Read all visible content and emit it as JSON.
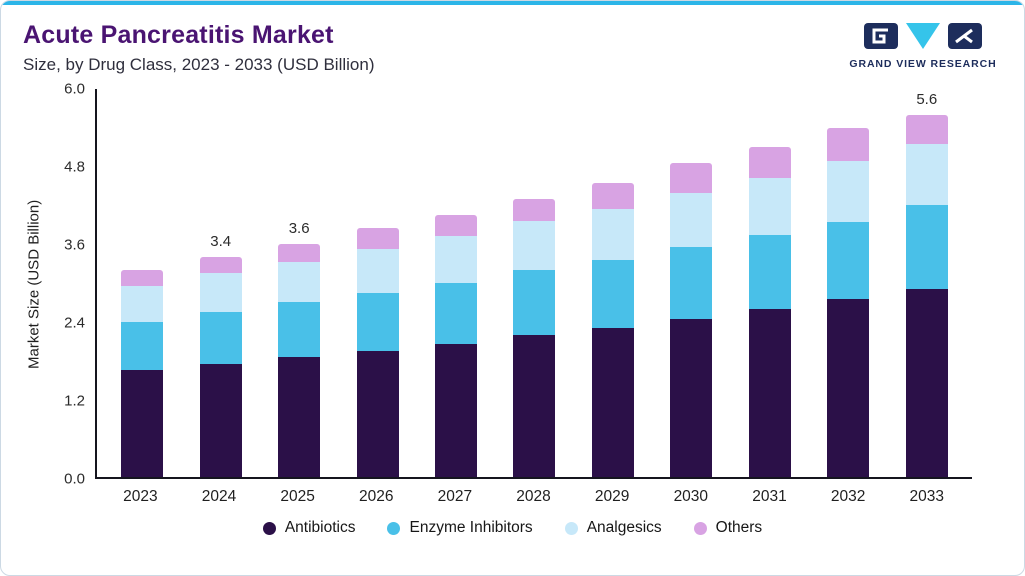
{
  "header": {
    "title": "Acute Pancreatitis Market",
    "subtitle": "Size, by Drug Class, 2023 - 2033 (USD Billion)"
  },
  "logo": {
    "text": "GRAND VIEW RESEARCH"
  },
  "colors": {
    "accent_top_line": "#2cb5e8",
    "title_purple": "#4a1472",
    "logo_navy": "#1d2d5c",
    "logo_cyan": "#35c4ea",
    "axis": "#15151e"
  },
  "chart_data": {
    "type": "bar",
    "stacked": true,
    "title": "Acute Pancreatitis Market Size, by Drug Class, 2023 - 2033 (USD Billion)",
    "categories": [
      "2023",
      "2024",
      "2025",
      "2026",
      "2027",
      "2028",
      "2029",
      "2030",
      "2031",
      "2032",
      "2033"
    ],
    "series": [
      {
        "name": "Antibiotics",
        "color": "#2b1048",
        "values": [
          1.65,
          1.75,
          1.85,
          1.95,
          2.05,
          2.2,
          2.3,
          2.45,
          2.6,
          2.75,
          2.9
        ]
      },
      {
        "name": "Enzyme Inhibitors",
        "color": "#49c0e8",
        "values": [
          0.75,
          0.8,
          0.85,
          0.9,
          0.95,
          1.0,
          1.05,
          1.1,
          1.15,
          1.2,
          1.3
        ]
      },
      {
        "name": "Analgesics",
        "color": "#c7e8f9",
        "values": [
          0.55,
          0.6,
          0.62,
          0.67,
          0.72,
          0.76,
          0.8,
          0.85,
          0.88,
          0.93,
          0.95
        ]
      },
      {
        "name": "Others",
        "color": "#d8a3e3",
        "values": [
          0.25,
          0.25,
          0.28,
          0.33,
          0.33,
          0.34,
          0.4,
          0.45,
          0.47,
          0.52,
          0.45
        ]
      }
    ],
    "totals": [
      3.2,
      3.4,
      3.6,
      3.85,
      4.05,
      4.3,
      4.55,
      4.85,
      5.1,
      5.4,
      5.6
    ],
    "total_labels": [
      "",
      "3.4",
      "3.6",
      "",
      "",
      "",
      "",
      "",
      "",
      "",
      "5.6"
    ],
    "xlabel": "",
    "ylabel": "Market Size (USD Billion)",
    "yticks": [
      "0.0",
      "1.2",
      "2.4",
      "3.6",
      "4.8",
      "6.0"
    ],
    "ylim": [
      0,
      6
    ],
    "grid": false,
    "legend_position": "bottom"
  }
}
